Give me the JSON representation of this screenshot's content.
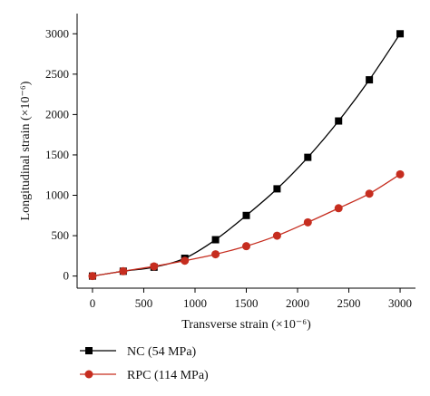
{
  "chart_data": {
    "type": "line",
    "title": "",
    "xlabel": "Transverse strain (×10⁻⁶)",
    "ylabel": "Longitudinal strain (×10⁻⁶)",
    "xlim": [
      -150,
      3150
    ],
    "ylim": [
      -150,
      3250
    ],
    "xticks": [
      0,
      500,
      1000,
      1500,
      2000,
      2500,
      3000
    ],
    "yticks": [
      0,
      500,
      1000,
      1500,
      2000,
      2500,
      3000
    ],
    "grid": false,
    "legend_position": "bottom-left, below plot",
    "series": [
      {
        "name": "NC (54 MPa)",
        "color": "#000000",
        "marker": "square",
        "x": [
          0,
          300,
          600,
          900,
          1200,
          1500,
          1800,
          2100,
          2400,
          2700,
          3000
        ],
        "y": [
          0,
          60,
          110,
          220,
          450,
          750,
          1080,
          1470,
          1920,
          2430,
          3000
        ]
      },
      {
        "name": "RPC (114 MPa)",
        "color": "#c62d1f",
        "marker": "circle",
        "x": [
          0,
          300,
          600,
          900,
          1200,
          1500,
          1800,
          2100,
          2400,
          2700,
          3000
        ],
        "y": [
          0,
          60,
          120,
          190,
          270,
          370,
          500,
          665,
          840,
          1020,
          1260
        ]
      }
    ]
  }
}
